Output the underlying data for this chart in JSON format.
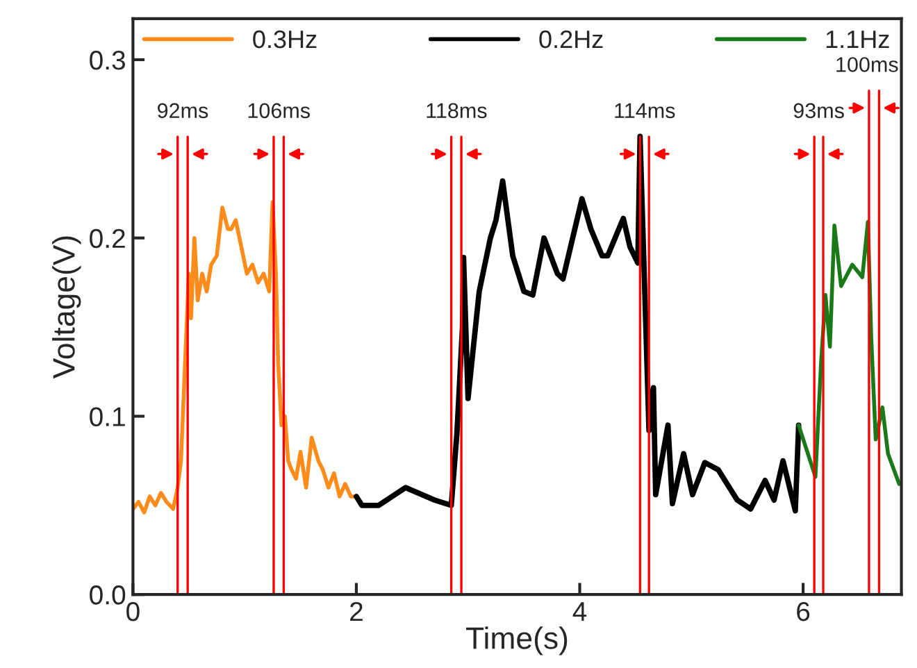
{
  "chart_data": {
    "type": "line",
    "xlabel": "Time(s)",
    "ylabel": "Voltage(V)",
    "xlim": [
      0,
      6.88
    ],
    "ylim": [
      0,
      0.323
    ],
    "xticks": [
      0,
      2,
      4,
      6
    ],
    "yticks": [
      {
        "value": 0,
        "label": "0.0"
      },
      0.1,
      0.2,
      0.3
    ],
    "legend": "top",
    "grid": false,
    "marker": "none",
    "line_style": "solid",
    "series": [
      {
        "name": "0.3Hz",
        "color": "#ff8c1a",
        "x": [
          0,
          0.05,
          0.1,
          0.15,
          0.2,
          0.25,
          0.3,
          0.36,
          0.4,
          0.43,
          0.46,
          0.48,
          0.5,
          0.52,
          0.55,
          0.58,
          0.62,
          0.66,
          0.7,
          0.75,
          0.8,
          0.85,
          0.88,
          0.92,
          0.97,
          1.02,
          1.07,
          1.12,
          1.17,
          1.22,
          1.25,
          1.28,
          1.3,
          1.33,
          1.36,
          1.39,
          1.42,
          1.46,
          1.5,
          1.55,
          1.6,
          1.66,
          1.7,
          1.75,
          1.8,
          1.85,
          1.9,
          1.95,
          2.0
        ],
        "values": [
          0.048,
          0.052,
          0.046,
          0.055,
          0.05,
          0.057,
          0.052,
          0.048,
          0.06,
          0.075,
          0.12,
          0.15,
          0.18,
          0.155,
          0.2,
          0.165,
          0.18,
          0.17,
          0.185,
          0.19,
          0.217,
          0.205,
          0.205,
          0.21,
          0.195,
          0.18,
          0.185,
          0.175,
          0.18,
          0.17,
          0.22,
          0.18,
          0.13,
          0.095,
          0.1,
          0.075,
          0.07,
          0.065,
          0.08,
          0.06,
          0.088,
          0.075,
          0.07,
          0.06,
          0.068,
          0.055,
          0.062,
          0.055,
          0.055
        ]
      },
      {
        "name": "0.2Hz",
        "color": "#000000",
        "x": [
          2.0,
          2.05,
          2.2,
          2.44,
          2.7,
          2.85,
          2.9,
          2.95,
          2.96,
          3.0,
          3.1,
          3.2,
          3.25,
          3.31,
          3.4,
          3.5,
          3.58,
          3.68,
          3.8,
          3.85,
          4.02,
          4.1,
          4.2,
          4.25,
          4.39,
          4.45,
          4.52,
          4.54,
          4.62,
          4.66,
          4.68,
          4.79,
          4.83,
          4.93,
          5.01,
          5.12,
          5.24,
          5.41,
          5.53,
          5.66,
          5.74,
          5.82,
          5.93,
          5.96
        ],
        "values": [
          0.055,
          0.05,
          0.05,
          0.06,
          0.053,
          0.05,
          0.09,
          0.15,
          0.189,
          0.11,
          0.17,
          0.2,
          0.21,
          0.232,
          0.19,
          0.17,
          0.168,
          0.2,
          0.18,
          0.177,
          0.222,
          0.205,
          0.19,
          0.19,
          0.211,
          0.195,
          0.186,
          0.257,
          0.092,
          0.116,
          0.056,
          0.095,
          0.051,
          0.079,
          0.056,
          0.074,
          0.07,
          0.053,
          0.048,
          0.064,
          0.053,
          0.075,
          0.047,
          0.095
        ]
      },
      {
        "name": "1.1Hz",
        "color": "#1a7a1a",
        "x": [
          5.96,
          6.11,
          6.16,
          6.2,
          6.24,
          6.28,
          6.34,
          6.44,
          6.53,
          6.58,
          6.61,
          6.65,
          6.71,
          6.76,
          6.86
        ],
        "values": [
          0.095,
          0.066,
          0.129,
          0.168,
          0.139,
          0.207,
          0.173,
          0.185,
          0.178,
          0.209,
          0.144,
          0.087,
          0.105,
          0.079,
          0.062
        ]
      }
    ],
    "ref_lines": [
      {
        "axis": "x",
        "value": 0.4,
        "color": "#ff0000"
      },
      {
        "axis": "x",
        "value": 0.49,
        "color": "#ff0000"
      },
      {
        "axis": "x",
        "value": 1.26,
        "color": "#ff0000"
      },
      {
        "axis": "x",
        "value": 1.35,
        "color": "#ff0000"
      },
      {
        "axis": "x",
        "value": 2.85,
        "color": "#ff0000"
      },
      {
        "axis": "x",
        "value": 2.94,
        "color": "#ff0000"
      },
      {
        "axis": "x",
        "value": 4.54,
        "color": "#ff0000"
      },
      {
        "axis": "x",
        "value": 4.62,
        "color": "#ff0000"
      },
      {
        "axis": "x",
        "value": 6.1,
        "color": "#ff0000"
      },
      {
        "axis": "x",
        "value": 6.18,
        "color": "#ff0000"
      },
      {
        "axis": "x",
        "value": 6.59,
        "color": "#ff0000"
      },
      {
        "axis": "x",
        "value": 6.68,
        "color": "#ff0000"
      }
    ],
    "annotations": [
      "92ms",
      "106ms",
      "118ms",
      "114ms",
      "93ms",
      "100ms"
    ]
  }
}
